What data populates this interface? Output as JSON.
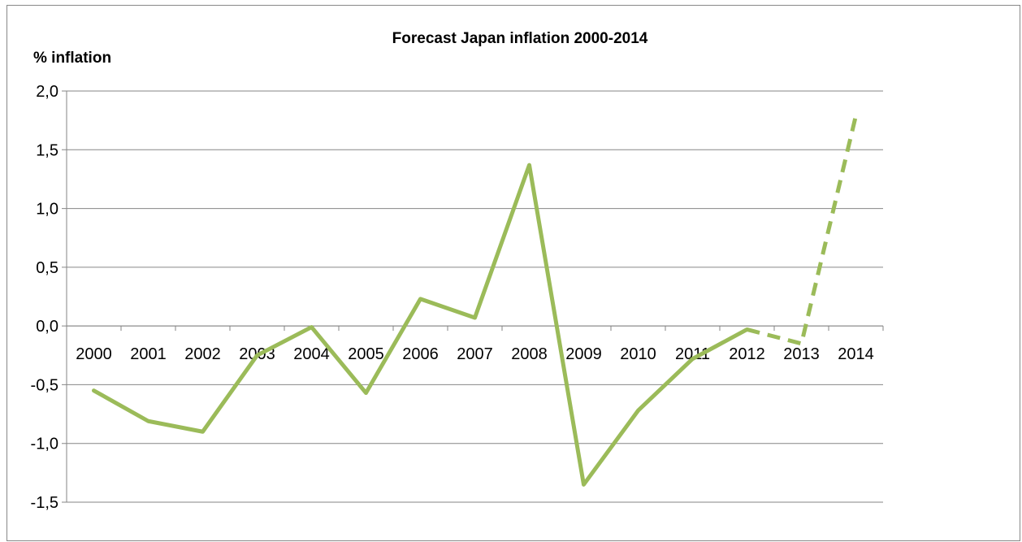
{
  "chart_data": {
    "type": "line",
    "title": "Forecast Japan inflation 2000-2014",
    "xlabel": "",
    "ylabel": "% inflation",
    "categories": [
      "2000",
      "2001",
      "2002",
      "2003",
      "2004",
      "2005",
      "2006",
      "2007",
      "2008",
      "2009",
      "2010",
      "2011",
      "2012",
      "2013",
      "2014"
    ],
    "y_tick_labels": [
      "2,0",
      "1,5",
      "1,0",
      "0,5",
      "0,0",
      "-0,5",
      "-1,0",
      "-1,5"
    ],
    "ylim": [
      -1.5,
      2.0
    ],
    "grid": true,
    "legend": "none",
    "line_color": "#9BBB59",
    "series": [
      {
        "values": [
          -0.55,
          -0.81,
          -0.9,
          -0.25,
          -0.01,
          -0.57,
          0.23,
          0.07,
          1.37,
          -1.35,
          -0.72,
          -0.28,
          -0.03,
          -0.15,
          1.79
        ],
        "forecast_from_index": 12
      }
    ]
  }
}
